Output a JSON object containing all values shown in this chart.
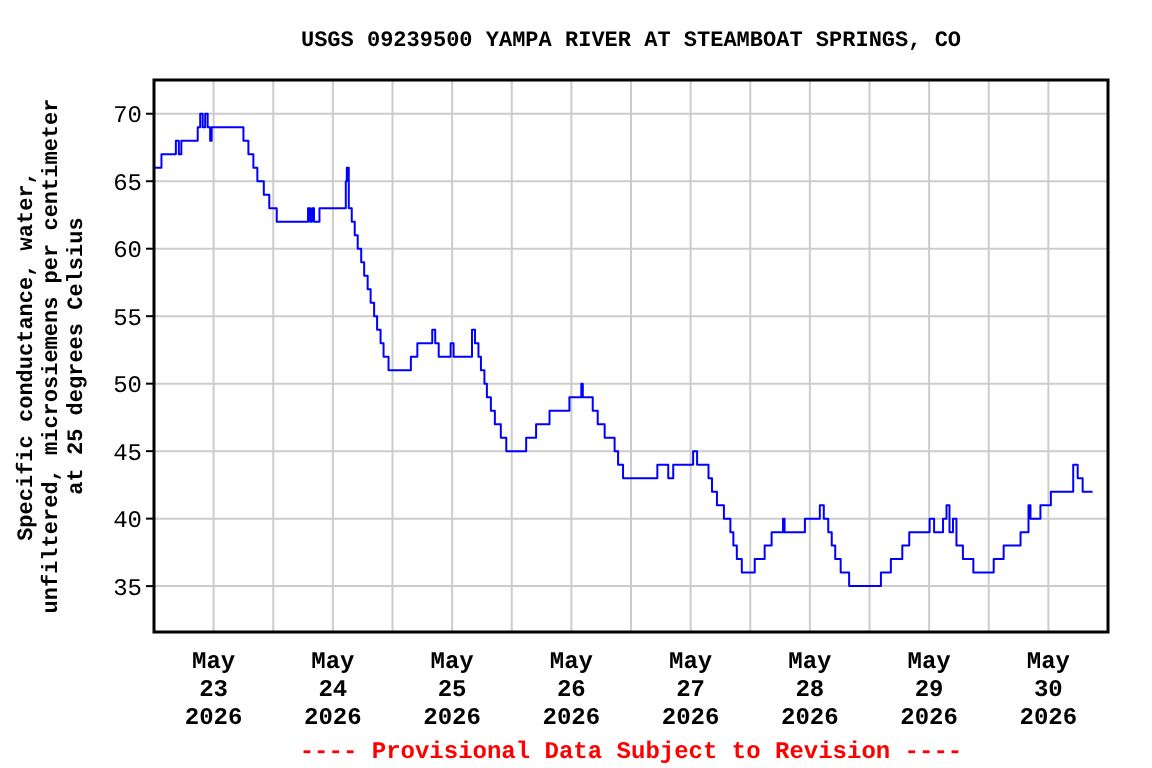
{
  "chart_data": {
    "type": "step",
    "title": "USGS 09239500 YAMPA RIVER AT STEAMBOAT SPRINGS, CO",
    "ylabel": "Specific conductance, water,\nunfiltered, microsiemens per centimeter\nat 25 degrees Celsius",
    "annotations": [
      "---- Provisional Data Subject to Revision ----"
    ],
    "xlim": [
      "2026-05-23T00:00",
      "2026-05-31T00:00"
    ],
    "xticks": [
      {
        "value": "2026-05-23T12:00",
        "label": "May\n23\n2026"
      },
      {
        "value": "2026-05-24T12:00",
        "label": "May\n24\n2026"
      },
      {
        "value": "2026-05-25T12:00",
        "label": "May\n25\n2026"
      },
      {
        "value": "2026-05-26T12:00",
        "label": "May\n26\n2026"
      },
      {
        "value": "2026-05-27T12:00",
        "label": "May\n27\n2026"
      },
      {
        "value": "2026-05-28T12:00",
        "label": "May\n28\n2026"
      },
      {
        "value": "2026-05-29T12:00",
        "label": "May\n29\n2026"
      },
      {
        "value": "2026-05-30T12:00",
        "label": "May\n30\n2026"
      },
      {
        "value": "2026-05-24T00:00",
        "label": null
      },
      {
        "value": "2026-05-25T00:00",
        "label": null
      },
      {
        "value": "2026-05-26T00:00",
        "label": null
      },
      {
        "value": "2026-05-27T00:00",
        "label": null
      },
      {
        "value": "2026-05-28T00:00",
        "label": null
      },
      {
        "value": "2026-05-29T00:00",
        "label": null
      },
      {
        "value": "2026-05-30T00:00",
        "label": null
      }
    ],
    "ylim": [
      31.6,
      72.5
    ],
    "yticks": [
      35,
      40,
      45,
      50,
      55,
      60,
      65,
      70
    ],
    "grid": true,
    "x": [
      "2026-05-23T00:00",
      "2026-05-23T01:30",
      "2026-05-23T04:24",
      "2026-05-23T05:00",
      "2026-05-23T05:30",
      "2026-05-23T08:48",
      "2026-05-23T09:18",
      "2026-05-23T09:48",
      "2026-05-23T10:18",
      "2026-05-23T10:48",
      "2026-05-23T11:18",
      "2026-05-23T11:36",
      "2026-05-23T18:00",
      "2026-05-23T19:00",
      "2026-05-23T20:00",
      "2026-05-23T20:48",
      "2026-05-23T22:06",
      "2026-05-23T23:12",
      "2026-05-24T00:42",
      "2026-05-24T07:00",
      "2026-05-24T07:24",
      "2026-05-24T07:48",
      "2026-05-24T08:12",
      "2026-05-24T09:18",
      "2026-05-24T14:36",
      "2026-05-24T14:48",
      "2026-05-24T15:12",
      "2026-05-24T15:48",
      "2026-05-24T16:24",
      "2026-05-24T17:00",
      "2026-05-24T17:42",
      "2026-05-24T18:18",
      "2026-05-24T19:00",
      "2026-05-24T19:36",
      "2026-05-24T20:18",
      "2026-05-24T20:54",
      "2026-05-24T21:36",
      "2026-05-24T22:12",
      "2026-05-24T23:12",
      "2026-05-25T03:42",
      "2026-05-25T05:00",
      "2026-05-25T08:00",
      "2026-05-25T08:36",
      "2026-05-25T09:18",
      "2026-05-25T11:42",
      "2026-05-25T12:18",
      "2026-05-25T16:00",
      "2026-05-25T16:36",
      "2026-05-25T17:18",
      "2026-05-25T17:48",
      "2026-05-25T18:30",
      "2026-05-25T19:00",
      "2026-05-25T19:48",
      "2026-05-25T20:36",
      "2026-05-25T21:48",
      "2026-05-25T22:54",
      "2026-05-26T02:54",
      "2026-05-26T04:54",
      "2026-05-26T07:36",
      "2026-05-26T11:36",
      "2026-05-26T14:00",
      "2026-05-26T14:18",
      "2026-05-26T16:18",
      "2026-05-26T17:18",
      "2026-05-26T18:42",
      "2026-05-26T20:42",
      "2026-05-26T21:24",
      "2026-05-26T22:24",
      "2026-05-27T05:18",
      "2026-05-27T07:30",
      "2026-05-27T08:30",
      "2026-05-27T12:30",
      "2026-05-27T13:18",
      "2026-05-27T15:36",
      "2026-05-27T16:18",
      "2026-05-27T17:18",
      "2026-05-27T18:42",
      "2026-05-27T20:00",
      "2026-05-27T20:36",
      "2026-05-27T21:18",
      "2026-05-27T22:18",
      "2026-05-28T00:54",
      "2026-05-28T02:54",
      "2026-05-28T04:18",
      "2026-05-28T06:36",
      "2026-05-28T06:54",
      "2026-05-28T11:00",
      "2026-05-28T14:00",
      "2026-05-28T14:48",
      "2026-05-28T15:42",
      "2026-05-28T16:24",
      "2026-05-28T17:06",
      "2026-05-28T18:12",
      "2026-05-28T19:54",
      "2026-05-29T02:18",
      "2026-05-29T04:18",
      "2026-05-29T06:36",
      "2026-05-29T08:00",
      "2026-05-29T12:06",
      "2026-05-29T13:00",
      "2026-05-29T14:48",
      "2026-05-29T15:30",
      "2026-05-29T16:06",
      "2026-05-29T16:48",
      "2026-05-29T17:30",
      "2026-05-29T18:48",
      "2026-05-29T20:54",
      "2026-05-30T01:00",
      "2026-05-30T03:00",
      "2026-05-30T06:24",
      "2026-05-30T08:00",
      "2026-05-30T08:24",
      "2026-05-30T10:24",
      "2026-05-30T12:30",
      "2026-05-30T17:00",
      "2026-05-30T17:54",
      "2026-05-30T18:54",
      "2026-05-30T20:54"
    ],
    "series": [
      {
        "color": "#0000ff",
        "values": [
          66,
          67,
          68,
          67,
          68,
          69,
          70,
          69,
          70,
          69,
          68,
          69,
          68,
          67,
          66,
          65,
          64,
          63,
          62,
          63,
          62,
          63,
          62,
          63,
          65,
          66,
          63,
          62,
          61,
          60,
          59,
          58,
          57,
          56,
          55,
          54,
          53,
          52,
          51,
          52,
          53,
          54,
          53,
          52,
          53,
          52,
          54,
          53,
          52,
          51,
          50,
          49,
          48,
          47,
          46,
          45,
          46,
          47,
          48,
          49,
          50,
          49,
          48,
          47,
          46,
          45,
          44,
          43,
          44,
          43,
          44,
          45,
          44,
          43,
          42,
          41,
          40,
          39,
          38,
          37,
          36,
          37,
          38,
          39,
          40,
          39,
          40,
          41,
          40,
          39,
          38,
          37,
          36,
          35,
          36,
          37,
          38,
          39,
          40,
          39,
          40,
          41,
          39,
          40,
          38,
          37,
          36,
          37,
          38,
          39,
          41,
          40,
          41,
          42,
          44,
          43,
          42,
          42
        ]
      }
    ]
  }
}
